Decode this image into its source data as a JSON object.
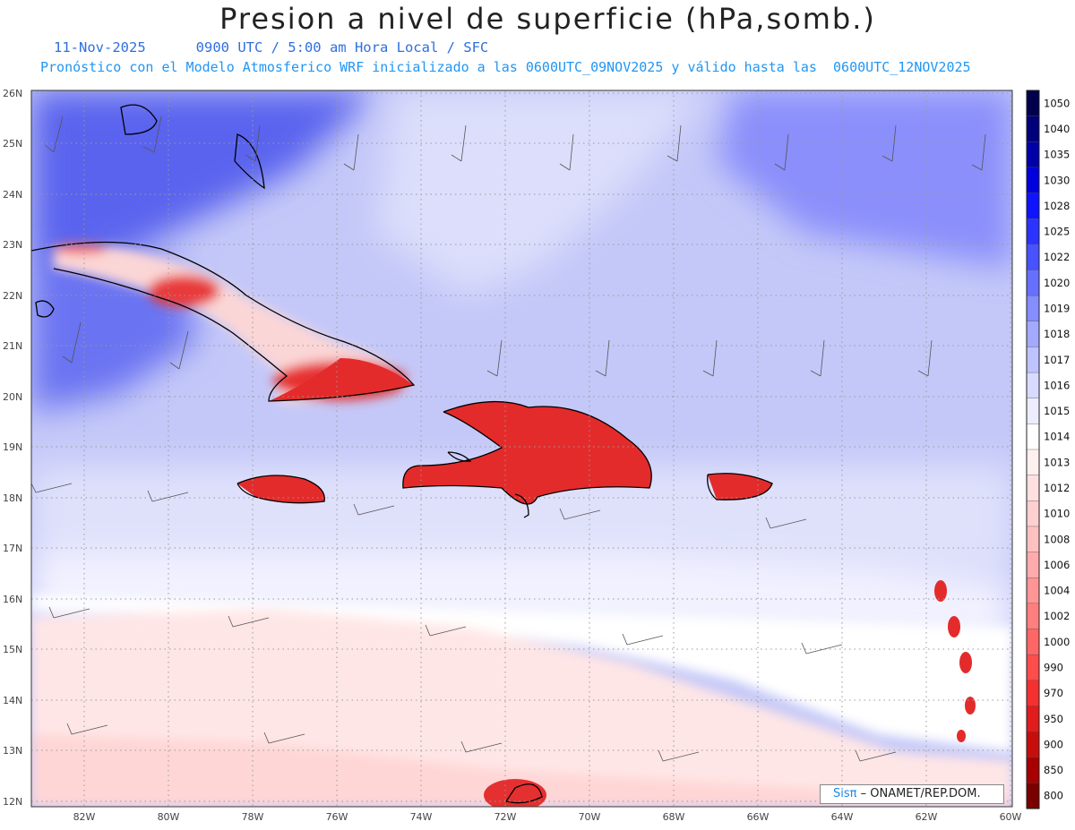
{
  "header": {
    "title": "Presion a nivel de superficie (hPa,somb.)",
    "date": "11-Nov-2025",
    "valid": "0900 UTC / 5:00 am Hora Local / SFC",
    "model_line": "Pronóstico con el Modelo Atmosferico WRF inicializado a las 0600UTC_09NOV2025 y válido hasta las  0600UTC_12NOV2025"
  },
  "map": {
    "lat_labels": [
      "26N",
      "25N",
      "24N",
      "23N",
      "22N",
      "21N",
      "20N",
      "19N",
      "18N",
      "17N",
      "16N",
      "15N",
      "14N",
      "13N",
      "12N"
    ],
    "lon_labels": [
      "82W",
      "80W",
      "78W",
      "76W",
      "74W",
      "72W",
      "70W",
      "68W",
      "66W",
      "64W",
      "62W",
      "60W"
    ],
    "lat_range": [
      12,
      26
    ],
    "lon_range": [
      -83.2,
      -60
    ]
  },
  "legend": {
    "levels": [
      {
        "label": "1050",
        "color": "#00004c"
      },
      {
        "label": "1040",
        "color": "#00007a"
      },
      {
        "label": "1035",
        "color": "#0000a8"
      },
      {
        "label": "1030",
        "color": "#0000dc"
      },
      {
        "label": "1028",
        "color": "#0f14ff"
      },
      {
        "label": "1025",
        "color": "#2b34ff"
      },
      {
        "label": "1022",
        "color": "#4852ff"
      },
      {
        "label": "1020",
        "color": "#6670ff"
      },
      {
        "label": "1019",
        "color": "#858dff"
      },
      {
        "label": "1018",
        "color": "#a3a9ff"
      },
      {
        "label": "1017",
        "color": "#bfc3ff"
      },
      {
        "label": "1016",
        "color": "#d8daff"
      },
      {
        "label": "1015",
        "color": "#ecedff"
      },
      {
        "label": "1014",
        "color": "#ffffff"
      },
      {
        "label": "1013",
        "color": "#fff0f0"
      },
      {
        "label": "1012",
        "color": "#ffe0e0"
      },
      {
        "label": "1010",
        "color": "#ffd0d0"
      },
      {
        "label": "1008",
        "color": "#ffc0c0"
      },
      {
        "label": "1006",
        "color": "#ffabab"
      },
      {
        "label": "1004",
        "color": "#ff9595"
      },
      {
        "label": "1002",
        "color": "#ff7e7e"
      },
      {
        "label": "1000",
        "color": "#ff6666"
      },
      {
        "label": "990",
        "color": "#ff4c4c"
      },
      {
        "label": "970",
        "color": "#f53030"
      },
      {
        "label": "950",
        "color": "#e01c1c"
      },
      {
        "label": "900",
        "color": "#c80d0d"
      },
      {
        "label": "850",
        "color": "#a80000"
      },
      {
        "label": "800",
        "color": "#7a0000"
      }
    ]
  },
  "credit": {
    "logo": "Sisπ",
    "text": " – ONAMET/REP.DOM."
  },
  "colors": {
    "northeast_high": "#8b90fb",
    "northwest_high": "#5a64ef",
    "mid_field": "#b7bbf6",
    "sea_band": "#dcdefa",
    "neutral": "#ffffff",
    "south_field": "#ffe8e8",
    "land_low": "#e92c2c"
  }
}
